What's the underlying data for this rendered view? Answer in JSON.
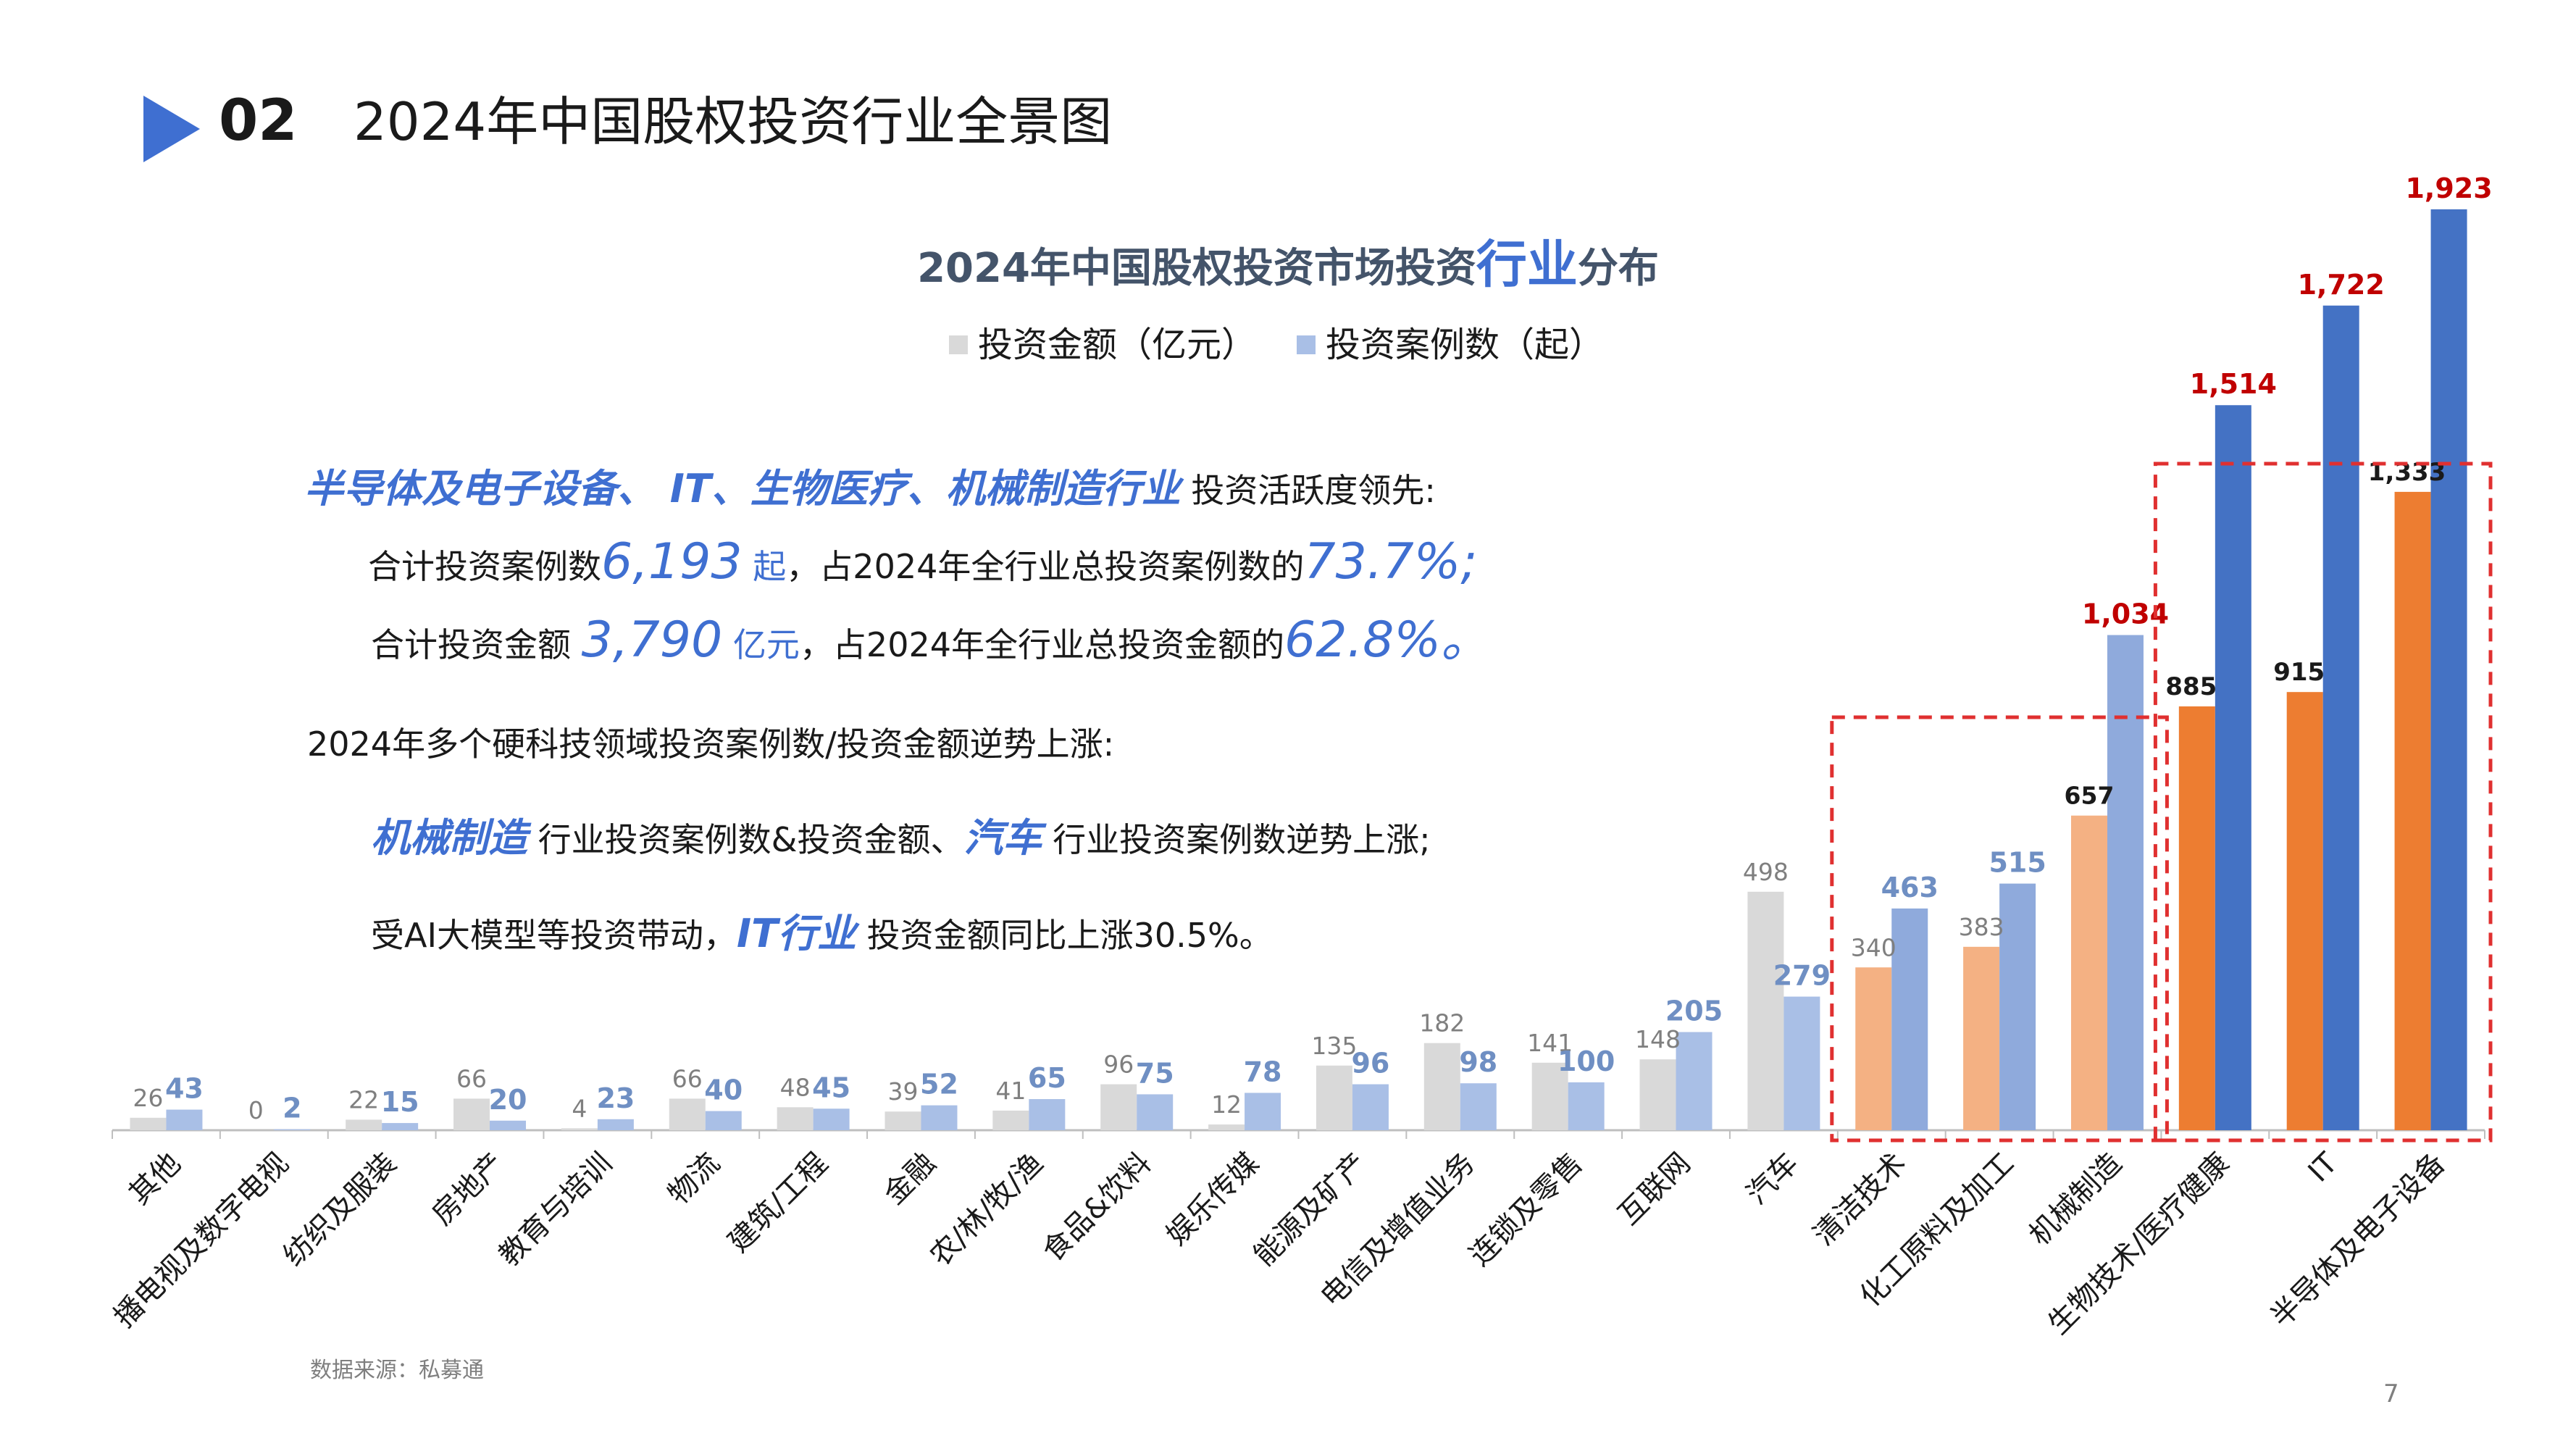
{
  "header": {
    "section_number": "02",
    "section_title": "2024年中国股权投资行业全景图"
  },
  "chart_title": {
    "prefix": "2024年中国股权投资市场投资",
    "highlight": "行业",
    "suffix": "分布"
  },
  "legend": [
    {
      "label": "投资金额（亿元）",
      "color": "#d9d9d9"
    },
    {
      "label": "投资案例数（起）",
      "color": "#a9bfe6"
    }
  ],
  "summary": {
    "line1_highlight": "半导体及电子设备、 IT、生物医疗、机械制造行业",
    "line1_rest": "投资活跃度领先:",
    "line2_a": "合计投资案例数",
    "line2_num": "6,193",
    "line2_unit": "起",
    "line2_b": "，占2024年全行业总投资案例数的",
    "line2_pct": "73.7%;",
    "line3_a": "合计投资金额",
    "line3_num": "3,790",
    "line3_unit": "亿元",
    "line3_b": "，占2024年全行业总投资金额的",
    "line3_pct": "62.8%。",
    "line4": "2024年多个硬科技领域投资案例数/投资金额逆势上涨:",
    "line5_h1": "机械制造",
    "line5_a": "行业投资案例数&投资金额、",
    "line5_h2": "汽车",
    "line5_b": "行业投资案例数逆势上涨;",
    "line6_a": "受AI大模型等投资带动，",
    "line6_h": "IT行业",
    "line6_b": "投资金额同比上涨30.5%。"
  },
  "source": "数据来源：私募通",
  "page_number": "7",
  "chart_data": {
    "type": "bar",
    "title": "2024年中国股权投资市场投资行业分布",
    "categories": [
      "其他",
      "播电视及数字电视",
      "纺织及服装",
      "房地产",
      "教育与培训",
      "物流",
      "建筑/工程",
      "金融",
      "农/林/牧/渔",
      "食品&饮料",
      "娱乐传媒",
      "能源及矿产",
      "电信及增值业务",
      "连锁及零售",
      "互联网",
      "汽车",
      "清洁技术",
      "化工原料及加工",
      "机械制造",
      "生物技术/医疗健康",
      "IT",
      "半导体及电子设备"
    ],
    "series": [
      {
        "name": "投资金额（亿元）",
        "values": [
          26,
          0,
          22,
          66,
          4,
          66,
          48,
          39,
          41,
          96,
          12,
          135,
          182,
          141,
          148,
          498,
          340,
          383,
          657,
          885,
          915,
          1333
        ]
      },
      {
        "name": "投资案例数（起）",
        "values": [
          43,
          2,
          15,
          20,
          23,
          40,
          45,
          52,
          65,
          75,
          78,
          96,
          98,
          100,
          205,
          279,
          463,
          515,
          1034,
          1514,
          1722,
          1923
        ]
      }
    ],
    "ylim": [
      0,
      2000
    ],
    "grid": false,
    "legend_position": "top",
    "colors": {
      "amount_default": "#d9d9d9",
      "count_default": "#a9bfe6",
      "amount_group1": "#f4b183",
      "count_group1": "#8faadc",
      "amount_group2": "#ed7d31",
      "count_group2": "#4472c4",
      "label_gray": "#7f7f7f",
      "label_blue": "#6f8fc3",
      "label_red": "#c00000",
      "box_red": "#e03030"
    }
  }
}
